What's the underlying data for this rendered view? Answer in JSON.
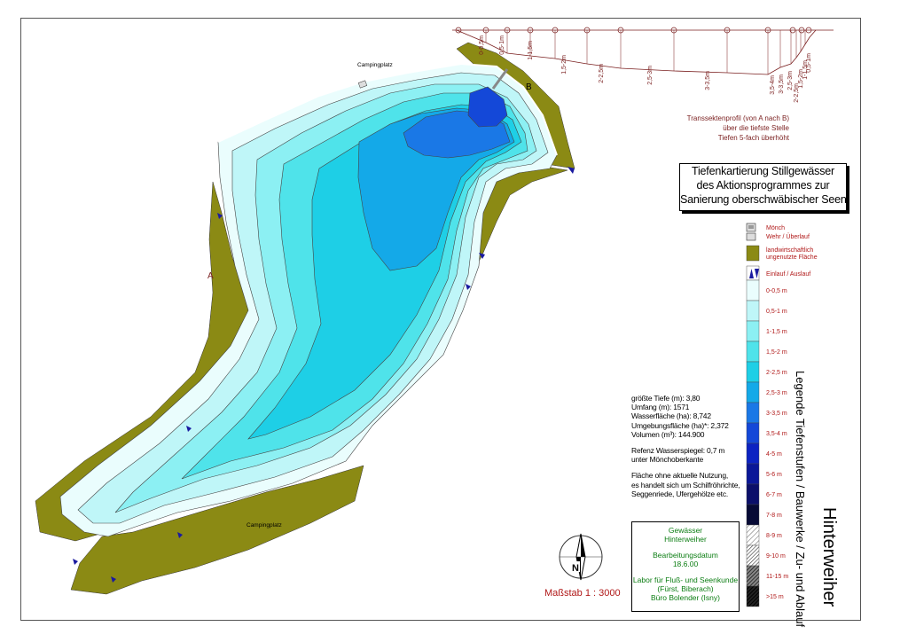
{
  "map": {
    "title_lines": [
      "Tiefenkartierung Stillgewässer",
      "des Aktionsprogrammes zur",
      "Sanierung oberschwäbischer Seen"
    ],
    "lake_name": "Hinterweiher",
    "legend_heading": "Legende Tiefenstufen / Bauwerke / Zu- und Ablauf",
    "labels": {
      "campingplatz_top": "Campingplatz",
      "campingplatz_bottom": "Campingplatz",
      "point_a": "A",
      "point_b": "B"
    },
    "scale": "Maßstab 1 : 3000",
    "north": "N"
  },
  "transect": {
    "note_lines": [
      "Transsektenprofil (von A nach B)",
      "über die tiefste Stelle",
      "Tiefen 5-fach überhöht"
    ],
    "depth_labels": [
      "0-0,5m",
      "0,5-1m",
      "1-1,5m",
      "1,5-2m",
      "2-2,5m",
      "2,5-3m",
      "3-3,5m",
      "3,5-4m",
      "3-3,5m",
      "2,5-3m",
      "2-2,5m",
      "1,5-2m",
      "1-1,5m",
      "0,5-1m"
    ]
  },
  "legend": {
    "structures": [
      {
        "label": "Mönch",
        "icon": "moench-icon"
      },
      {
        "label": "Wehr / Überlauf",
        "icon": "wehr-icon"
      },
      {
        "label": "landwirtschaftlich ungenutzte Fläche",
        "icon": "olive-swatch",
        "color": "#8b8a14"
      },
      {
        "label": "Einlauf / Auslauf",
        "icon": "inflow-outflow-icon"
      }
    ],
    "depth_classes": [
      {
        "label": "0-0,5 m",
        "color": "#eafdfd"
      },
      {
        "label": "0,5-1 m",
        "color": "#bff6f8"
      },
      {
        "label": "1-1,5 m",
        "color": "#8cf0f3"
      },
      {
        "label": "1,5-2 m",
        "color": "#4fe3ea"
      },
      {
        "label": "2-2,5 m",
        "color": "#1ecfe6"
      },
      {
        "label": "2,5-3 m",
        "color": "#14a9e8"
      },
      {
        "label": "3-3,5 m",
        "color": "#1a78e6"
      },
      {
        "label": "3,5-4 m",
        "color": "#1448d8"
      },
      {
        "label": "4-5 m",
        "color": "#0c23c2"
      },
      {
        "label": "5-6 m",
        "color": "#0a1798"
      },
      {
        "label": "6-7 m",
        "color": "#0b0f6a"
      },
      {
        "label": "7-8 m",
        "color": "#070a35"
      },
      {
        "label": "8-9 m",
        "color": "hatched-light"
      },
      {
        "label": "9-10 m",
        "color": "hatched-medium"
      },
      {
        "label": "11-15 m",
        "color": "hatched-dark"
      },
      {
        "label": ">15 m",
        "color": "hatched-black"
      }
    ]
  },
  "stats": {
    "lines": [
      "größte Tiefe (m): 3,80",
      "Umfang (m): 1571",
      "Wasserfläche (ha): 8,742",
      "Umgebungsfläche (ha)*: 2,372",
      "Volumen (m³): 144.900"
    ],
    "reference_lines": [
      "Refenz Wasserspiegel: 0,7 m",
      "unter Mönchoberkante"
    ],
    "note_lines": [
      "Fläche ohne aktuelle Nutzung,",
      "es handelt sich um Schilfröhrichte,",
      "Seggenriede, Ufergehölze etc."
    ]
  },
  "credits": {
    "lines_a": [
      "Gewässer",
      "Hinterweiher"
    ],
    "lines_b": [
      "Bearbeitungsdatum",
      "18.6.00"
    ],
    "lines_c": [
      "Labor für Fluß- und Seenkunde",
      "(Fürst, Biberach)",
      "Büro Bolender (Isny)"
    ]
  },
  "colors": {
    "olive": "#8b8a14",
    "label_red": "#b01818",
    "credit_green": "#0b7d12"
  }
}
